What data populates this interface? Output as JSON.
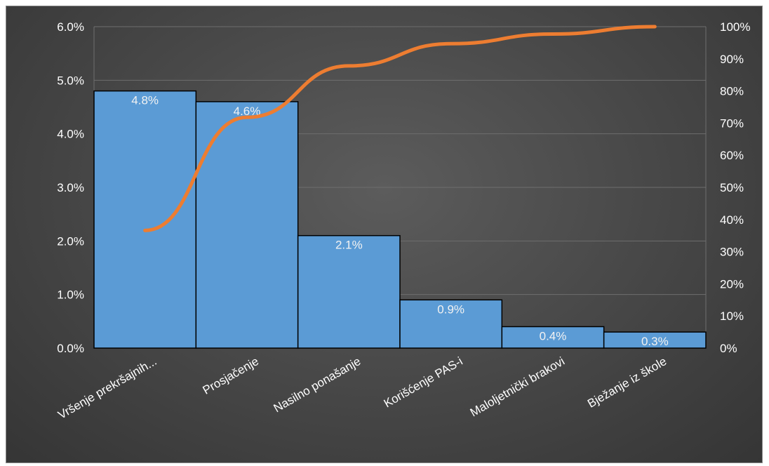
{
  "chart_data": {
    "type": "bar",
    "subtype": "pareto",
    "categories": [
      "Vršenje prekršajnih...",
      "Prosjačenje",
      "Nasilno ponašanje",
      "Korišćenje PAS-i",
      "Maloljetnički brakovi",
      "Bježanje iz škole"
    ],
    "series": [
      {
        "type": "bar",
        "axis": "left",
        "values": [
          4.8,
          4.6,
          2.1,
          0.9,
          0.4,
          0.3
        ],
        "data_labels": [
          "4.8%",
          "4.6%",
          "2.1%",
          "0.9%",
          "0.4%",
          "0.3%"
        ],
        "color": "#5b9bd5"
      },
      {
        "type": "line",
        "axis": "right",
        "values": [
          36.6,
          71.8,
          87.8,
          94.7,
          97.7,
          100
        ],
        "color": "#ed7d31"
      }
    ],
    "y_left": {
      "ylim": [
        0,
        6
      ],
      "ticks": [
        0,
        1,
        2,
        3,
        4,
        5,
        6
      ],
      "tick_labels": [
        "0.0%",
        "1.0%",
        "2.0%",
        "3.0%",
        "4.0%",
        "5.0%",
        "6.0%"
      ]
    },
    "y_right": {
      "ylim": [
        0,
        100
      ],
      "ticks": [
        0,
        10,
        20,
        30,
        40,
        50,
        60,
        70,
        80,
        90,
        100
      ],
      "tick_labels": [
        "0%",
        "10%",
        "20%",
        "30%",
        "40%",
        "50%",
        "60%",
        "70%",
        "80%",
        "90%",
        "100%"
      ]
    },
    "grid": true,
    "legend": "none",
    "title": "",
    "xlabel": "",
    "ylabel": ""
  },
  "colors": {
    "bar_fill": "#5b9bd5",
    "bar_stroke": "#000000",
    "line": "#ed7d31",
    "text": "#ffffff",
    "grid": "#6e6e6e"
  }
}
